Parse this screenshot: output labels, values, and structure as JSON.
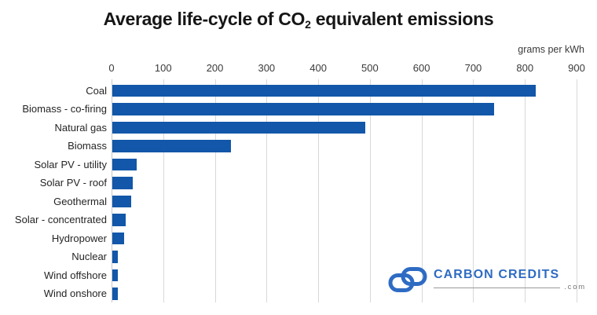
{
  "title": {
    "prefix": "Average life-cycle of CO",
    "subscript": "2",
    "suffix": " equivalent emissions"
  },
  "axis_unit_label": "grams per kWh",
  "chart_data": {
    "type": "bar",
    "orientation": "horizontal",
    "title": "Average life-cycle of CO2 equivalent emissions",
    "xlabel": "grams per kWh",
    "ylabel": "",
    "categories": [
      "Coal",
      "Biomass - co-firing",
      "Natural gas",
      "Biomass",
      "Solar PV - utility",
      "Solar PV - roof",
      "Geothermal",
      "Solar - concentrated",
      "Hydropower",
      "Nuclear",
      "Wind offshore",
      "Wind onshore"
    ],
    "values": [
      820,
      740,
      490,
      230,
      48,
      41,
      38,
      27,
      24,
      12,
      12,
      11
    ],
    "x_ticks": [
      0,
      100,
      200,
      300,
      400,
      500,
      600,
      700,
      800,
      900
    ],
    "xlim": [
      0,
      900
    ],
    "grid": true,
    "legend": false,
    "bar_color": "#1257A9",
    "gridline_color": "#D8D8D8",
    "zero_line_color": "#C8C8C8"
  },
  "logo": {
    "brand": "CARBON CREDITS",
    "domain": ".com",
    "icon": "interlocked-infinity-loops",
    "brand_color": "#2E6BC3"
  }
}
